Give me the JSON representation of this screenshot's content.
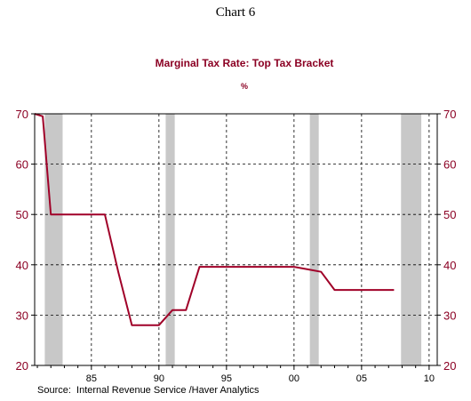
{
  "header": {
    "chart_number": "Chart 6"
  },
  "source": "Source:  Internal Revenue Service /Haver Analytics",
  "colors": {
    "line": "#a00028",
    "recession": "#c8c8c8",
    "text": "#8b0023"
  },
  "chart_data": {
    "type": "line",
    "title": "Marginal Tax Rate:  Top Tax Bracket",
    "unit": "%",
    "xlabel": "",
    "ylabel": "",
    "xlim": [
      1980.8,
      2010.6
    ],
    "ylim": [
      20,
      70
    ],
    "x_ticks": [
      {
        "value": 1985,
        "label": "85"
      },
      {
        "value": 1990,
        "label": "90"
      },
      {
        "value": 1995,
        "label": "95"
      },
      {
        "value": 2000,
        "label": "00"
      },
      {
        "value": 2005,
        "label": "05"
      },
      {
        "value": 2010,
        "label": "10"
      }
    ],
    "y_ticks": [
      20,
      30,
      40,
      50,
      60,
      70
    ],
    "grid": true,
    "recession_shading": [
      {
        "start": 1981.55,
        "end": 1982.87
      },
      {
        "start": 1990.5,
        "end": 1991.17
      },
      {
        "start": 2001.17,
        "end": 2001.83
      },
      {
        "start": 2007.92,
        "end": 2009.42
      }
    ],
    "series": [
      {
        "x": [
          1980.8,
          1981.4,
          1982,
          1986,
          1987,
          1988,
          1990,
          1991,
          1992,
          1993,
          1999,
          2000,
          2001,
          2002,
          2003,
          2007.4
        ],
        "values": [
          70,
          69.5,
          50,
          50,
          38.5,
          28,
          28,
          31,
          31,
          39.6,
          39.6,
          39.6,
          39.1,
          38.6,
          35,
          35
        ]
      }
    ]
  }
}
